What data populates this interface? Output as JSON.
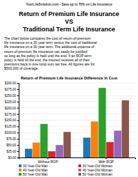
{
  "chart_data": {
    "type": "bar",
    "title": "Return of Premium Life Insurance Difference in Cost",
    "annotations": [
      "YourLifeSolution.com - Save up to 70% on Life Insurance",
      "Return of Premium Life Insurance",
      "VS",
      "Traditional Term Life Insurance",
      "The chart below compares the cost of return-of-premium\nlife insurance on a 30 year term versus the cost of traditional\nlife insurance on a 30 year term.  The additional expense of\nreturn-of-premium life insurance can easily be justified\nso long as the policy is held until the end.  If an ROP term\npolicy is held till the end, the insured receives all of their\npremiums back in one lump sum tax free.  All figures are for\n$500,000 of coverage."
    ],
    "categories": [
      "Without ROP",
      "With ROP"
    ],
    "series": [
      {
        "name": "30 Year-Old Man",
        "values": [
          35,
          80
        ]
      },
      {
        "name": "40 Year-Old Man",
        "values": [
          60,
          145
        ]
      },
      {
        "name": "50 Year-Old Man",
        "values": [
          135,
          280
        ]
      },
      {
        "name": "30 Year-Old Woman",
        "values": [
          25,
          62
        ]
      },
      {
        "name": "40 Year-Old Woman",
        "values": [
          50,
          108
        ]
      },
      {
        "name": "50 Year-Old Woman",
        "values": [
          103,
          230
        ]
      }
    ],
    "ylim": [
      0,
      300
    ],
    "yticks": [
      {
        "value": 0,
        "label": "$0.00"
      },
      {
        "value": 25,
        "label": "$25.00"
      },
      {
        "value": 50,
        "label": "$50.00"
      },
      {
        "value": 75,
        "label": "$75.00"
      },
      {
        "value": 100,
        "label": "$100.00"
      },
      {
        "value": 125,
        "label": "$125.00"
      },
      {
        "value": 150,
        "label": "$150.00"
      },
      {
        "value": 175,
        "label": "$175.00"
      },
      {
        "value": 200,
        "label": "$200.00"
      },
      {
        "value": 225,
        "label": "$225.00"
      },
      {
        "value": 250,
        "label": "$250.00"
      },
      {
        "value": 275,
        "label": "$275.00"
      },
      {
        "value": 300,
        "label": "$300.00"
      }
    ],
    "grid": true,
    "legend": "bottom"
  }
}
